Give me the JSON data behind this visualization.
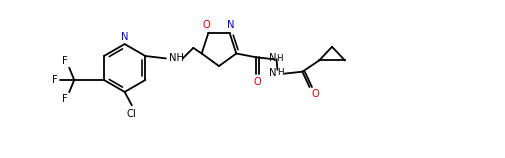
{
  "figsize": [
    5.05,
    1.58
  ],
  "dpi": 100,
  "bg_color": "#ffffff",
  "line_color": "#000000",
  "n_color": "#0000cd",
  "o_color": "#cc0000",
  "line_width": 1.3,
  "font_size": 7.2,
  "xlim": [
    0,
    10.5
  ],
  "ylim": [
    0,
    3.3
  ]
}
